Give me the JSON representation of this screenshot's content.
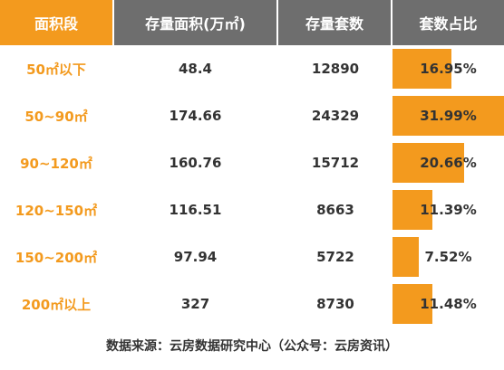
{
  "header": {
    "col0": "面积段",
    "col1": "存量面积(万㎡)",
    "col2": "存量套数",
    "col3": "套数占比"
  },
  "rows": [
    {
      "range": "50㎡以下",
      "area": "48.4",
      "count": "12890",
      "share": "16.95%",
      "share_value": 16.95
    },
    {
      "range": "50~90㎡",
      "area": "174.66",
      "count": "24329",
      "share": "31.99%",
      "share_value": 31.99
    },
    {
      "range": "90~120㎡",
      "area": "160.76",
      "count": "15712",
      "share": "20.66%",
      "share_value": 20.66
    },
    {
      "range": "120~150㎡",
      "area": "116.51",
      "count": "8663",
      "share": "11.39%",
      "share_value": 11.39
    },
    {
      "range": "150~200㎡",
      "area": "97.94",
      "count": "5722",
      "share": "7.52%",
      "share_value": 7.52
    },
    {
      "range": "200㎡以上",
      "area": "327",
      "count": "8730",
      "share": "11.48%",
      "share_value": 11.48
    }
  ],
  "source": "数据来源：云房数据研究中心（公众号：云房资讯）",
  "colors": {
    "accent": "#f39a1e",
    "header_gray": "#6e6e6e",
    "text": "#333333"
  }
}
